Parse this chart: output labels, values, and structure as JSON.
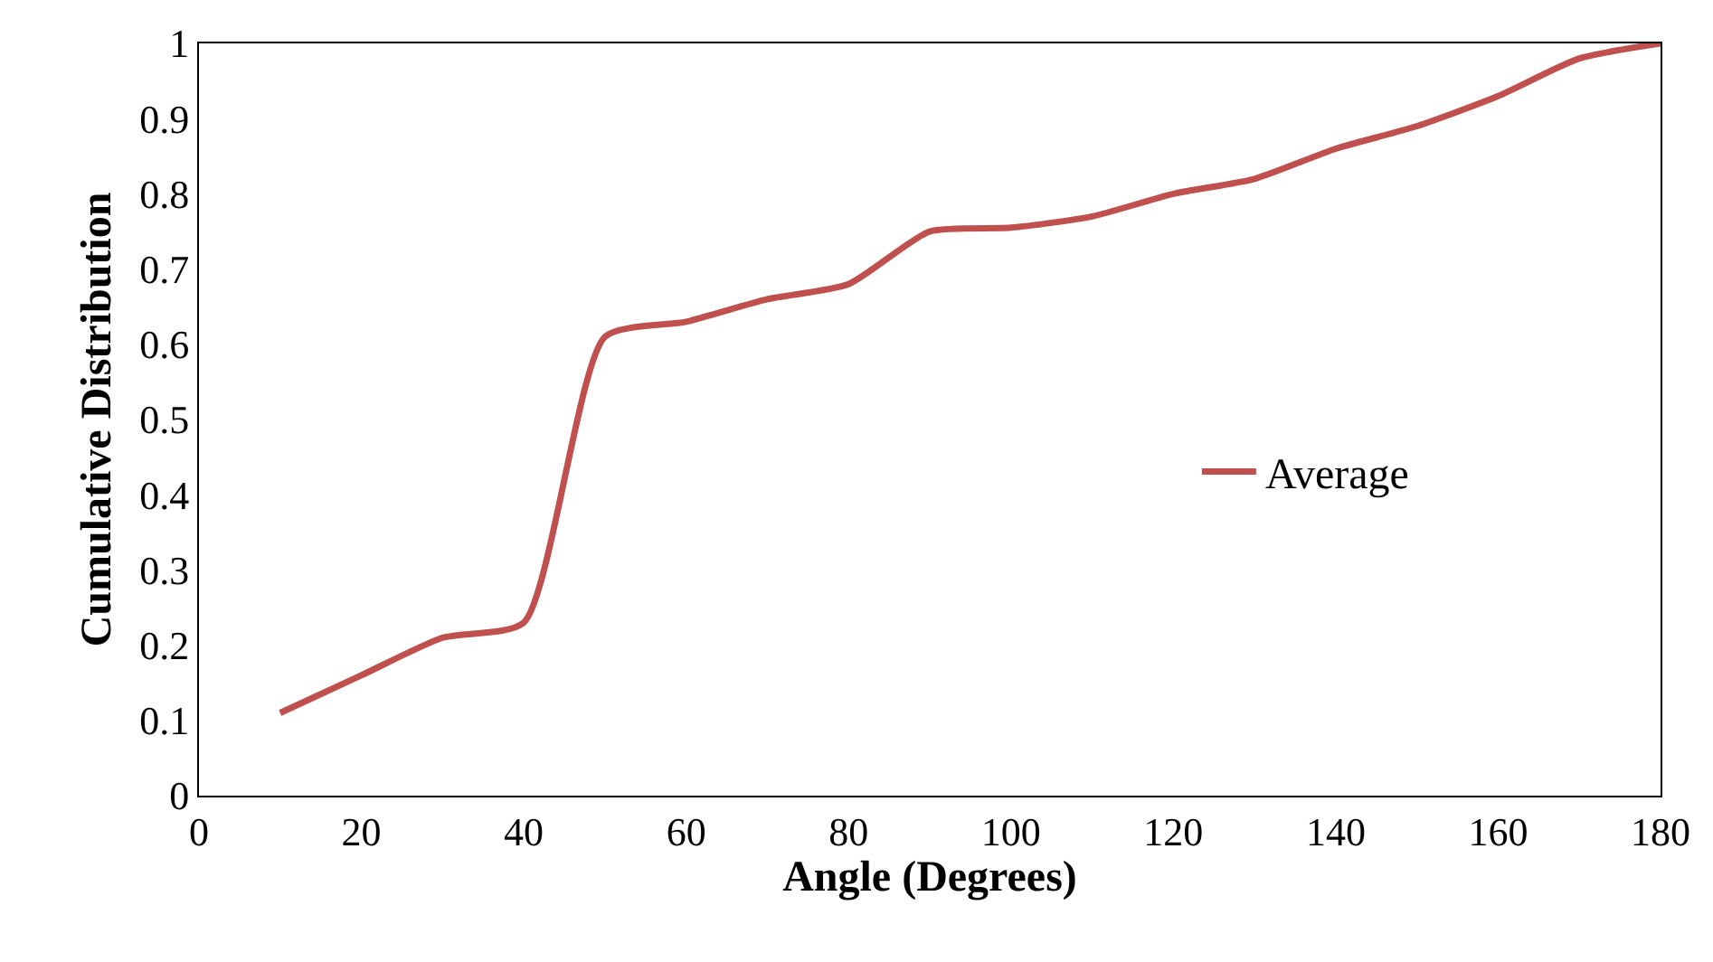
{
  "chart_data": {
    "type": "line",
    "xlabel": "Angle (Degrees)",
    "ylabel": "Cumulative Distribution",
    "x": [
      10,
      20,
      30,
      40,
      50,
      60,
      70,
      80,
      90,
      100,
      110,
      120,
      130,
      140,
      150,
      160,
      170,
      180
    ],
    "series": [
      {
        "name": "Average",
        "color": "#c0504d",
        "values": [
          0.11,
          0.16,
          0.21,
          0.23,
          0.61,
          0.63,
          0.66,
          0.68,
          0.75,
          0.755,
          0.77,
          0.8,
          0.82,
          0.86,
          0.89,
          0.93,
          0.98,
          1.0
        ]
      }
    ],
    "xlim": [
      0,
      180
    ],
    "xticks": [
      0,
      20,
      40,
      60,
      80,
      100,
      120,
      140,
      160,
      180
    ],
    "ylim": [
      0,
      1
    ],
    "yticks": [
      0,
      0.1,
      0.2,
      0.3,
      0.4,
      0.5,
      0.6,
      0.7,
      0.8,
      0.9,
      1
    ],
    "legend": "right",
    "marker": "none",
    "line_style": "solid"
  }
}
